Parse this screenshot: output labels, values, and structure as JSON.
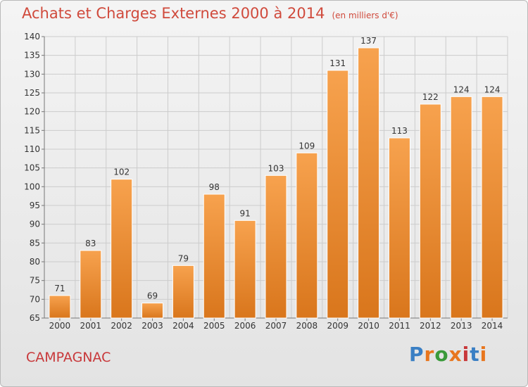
{
  "header": {
    "title": "Achats et Charges Externes 2000 à 2014",
    "unit": "(en milliers d'€)"
  },
  "footer": {
    "commune": "CAMPAGNAC",
    "logo_text": "Proxiti",
    "logo_colors": [
      "#3a7fc4",
      "#e8761e",
      "#3a9a3a",
      "#e8761e",
      "#c8383a",
      "#3a7fc4",
      "#e8761e"
    ]
  },
  "colors": {
    "bar_top": "#f7a24e",
    "bar_bottom": "#d9761c",
    "title": "#d04a3c",
    "grid": "#cccccc"
  },
  "chart_data": {
    "type": "bar",
    "title": "Achats et Charges Externes 2000 à 2014",
    "subtitle": "(en milliers d'€)",
    "xlabel": "",
    "ylabel": "",
    "categories": [
      "2000",
      "2001",
      "2002",
      "2003",
      "2004",
      "2005",
      "2006",
      "2007",
      "2008",
      "2009",
      "2010",
      "2011",
      "2012",
      "2013",
      "2014"
    ],
    "values": [
      71,
      83,
      102,
      69,
      79,
      98,
      91,
      103,
      109,
      131,
      137,
      113,
      122,
      124,
      124
    ],
    "ylim": [
      65,
      140
    ],
    "yticks": [
      65,
      70,
      75,
      80,
      85,
      90,
      95,
      100,
      105,
      110,
      115,
      120,
      125,
      130,
      135,
      140
    ],
    "grid": true,
    "data_labels": true
  }
}
